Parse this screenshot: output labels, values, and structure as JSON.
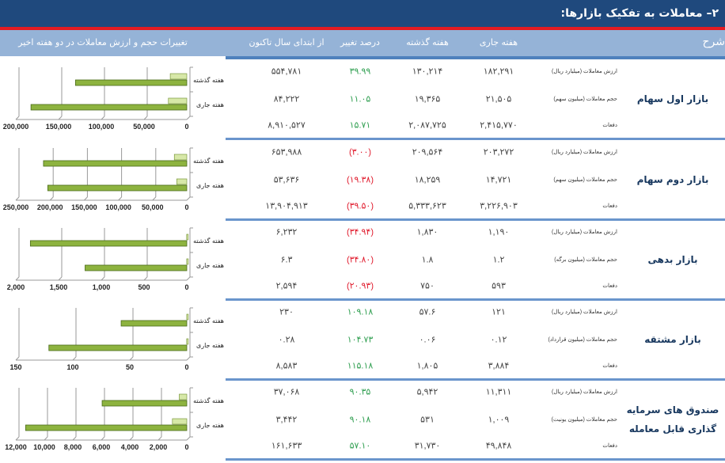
{
  "title": "۲– معاملات به تفکیک بازارها:",
  "header": {
    "sharh": "شرح",
    "current_week": "هفته جاری",
    "last_week": "هفته گذشته",
    "pct_change": "درصد تغییر",
    "ytd": "از ابتدای سال تاکنون",
    "chart_title": "تغییرات حجم و ارزش معاملات در دو هفته اخیر"
  },
  "colors": {
    "title_bg": "#1f497d",
    "accent_red": "#e21b22",
    "header_bg": "#95b3d7",
    "positive": "#2e9e4f",
    "negative": "#e0192b",
    "bar": "#8db33f"
  },
  "markets": [
    {
      "name": "بازار اول سهام",
      "rows": [
        {
          "label": "ارزش معاملات (میلیارد ریال)",
          "current": "۱۸۲,۲۹۱",
          "last": "۱۳۰,۲۱۴",
          "pct": "۳۹.۹۹",
          "pct_sign": "pos",
          "ytd": "۵۵۴,۷۸۱"
        },
        {
          "label": "حجم معاملات (میلیون سهم)",
          "current": "۲۱,۵۰۵",
          "last": "۱۹,۳۶۵",
          "pct": "۱۱.۰۵",
          "pct_sign": "pos",
          "ytd": "۸۴,۲۲۲"
        },
        {
          "label": "دفعات",
          "current": "۲,۴۱۵,۷۷۰",
          "last": "۲,۰۸۷,۷۲۵",
          "pct": "۱۵.۷۱",
          "pct_sign": "pos",
          "ytd": "۸,۹۱۰,۵۲۷"
        }
      ]
    },
    {
      "name": "بازار دوم سهام",
      "rows": [
        {
          "label": "ارزش معاملات (میلیارد ریال)",
          "current": "۲۰۳,۲۷۲",
          "last": "۲۰۹,۵۶۴",
          "pct": "(۳.۰۰)",
          "pct_sign": "neg",
          "ytd": "۶۵۳,۹۸۸"
        },
        {
          "label": "حجم معاملات (میلیون سهم)",
          "current": "۱۴,۷۲۱",
          "last": "۱۸,۲۵۹",
          "pct": "(۱۹.۳۸)",
          "pct_sign": "neg",
          "ytd": "۵۳,۶۳۶"
        },
        {
          "label": "دفعات",
          "current": "۳,۲۲۶,۹۰۳",
          "last": "۵,۳۳۳,۶۲۳",
          "pct": "(۳۹.۵۰)",
          "pct_sign": "neg",
          "ytd": "۱۳,۹۰۴,۹۱۳"
        }
      ]
    },
    {
      "name": "بازار بدهی",
      "rows": [
        {
          "label": "ارزش معاملات (میلیارد ریال)",
          "current": "۱,۱۹۰",
          "last": "۱,۸۳۰",
          "pct": "(۳۴.۹۴)",
          "pct_sign": "neg",
          "ytd": "۶,۲۳۲"
        },
        {
          "label": "حجم معاملات (میلیون برگه)",
          "current": "۱.۲",
          "last": "۱.۸",
          "pct": "(۳۴.۸۰)",
          "pct_sign": "neg",
          "ytd": "۶.۳"
        },
        {
          "label": "دفعات",
          "current": "۵۹۳",
          "last": "۷۵۰",
          "pct": "(۲۰.۹۳)",
          "pct_sign": "neg",
          "ytd": "۲,۵۹۴"
        }
      ]
    },
    {
      "name": "بازار مشتقه",
      "rows": [
        {
          "label": "ارزش معاملات (میلیارد ریال)",
          "current": "۱۲۱",
          "last": "۵۷.۶",
          "pct": "۱۰۹.۱۸",
          "pct_sign": "pos",
          "ytd": "۲۳۰"
        },
        {
          "label": "حجم معاملات (میلیون قرارداد)",
          "current": "۰.۱۲",
          "last": "۰.۰۶",
          "pct": "۱۰۴.۷۳",
          "pct_sign": "pos",
          "ytd": "۰.۲۸"
        },
        {
          "label": "دفعات",
          "current": "۳,۸۸۴",
          "last": "۱,۸۰۵",
          "pct": "۱۱۵.۱۸",
          "pct_sign": "pos",
          "ytd": "۸,۵۸۳"
        }
      ]
    },
    {
      "name": "صندوق های سرمایه گذاری قابل معامله",
      "name_line1": "صندوق های سرمایه",
      "name_line2": "گذاری قابل معامله",
      "rows": [
        {
          "label": "ارزش معاملات (میلیارد ریال)",
          "current": "۱۱,۳۱۱",
          "last": "۵,۹۴۲",
          "pct": "۹۰.۳۵",
          "pct_sign": "pos",
          "ytd": "۳۷,۰۶۸"
        },
        {
          "label": "حجم معاملات (میلیون یونیت)",
          "current": "۱,۰۰۹",
          "last": "۵۳۱",
          "pct": "۹۰.۱۸",
          "pct_sign": "pos",
          "ytd": "۳,۴۴۲"
        },
        {
          "label": "دفعات",
          "current": "۴۹,۸۴۸",
          "last": "۳۱,۷۳۰",
          "pct": "۵۷.۱۰",
          "pct_sign": "pos",
          "ytd": "۱۶۱,۶۳۳"
        }
      ]
    }
  ],
  "chart_data": [
    {
      "type": "bar",
      "orientation": "horizontal",
      "categories": [
        "هفته گذشته",
        "هفته جاری"
      ],
      "series": [
        {
          "values": [
            19365,
            21505
          ]
        },
        {
          "values": [
            130214,
            182291
          ]
        }
      ],
      "xlim": [
        0,
        200000
      ],
      "ticks": [
        "0",
        "50,000",
        "100,000",
        "150,000",
        "200,000"
      ],
      "tick_values": [
        0,
        50000,
        100000,
        150000,
        200000
      ]
    },
    {
      "type": "bar",
      "orientation": "horizontal",
      "categories": [
        "هفته گذشته",
        "هفته جاری"
      ],
      "series": [
        {
          "values": [
            18259,
            14721
          ]
        },
        {
          "values": [
            209564,
            203272
          ]
        }
      ],
      "xlim": [
        0,
        250000
      ],
      "ticks": [
        "0",
        "50,000",
        "100,000",
        "150,000",
        "200,000",
        "250,000"
      ],
      "tick_values": [
        0,
        50000,
        100000,
        150000,
        200000,
        250000
      ]
    },
    {
      "type": "bar",
      "orientation": "horizontal",
      "categories": [
        "هفته گذشته",
        "هفته جاری"
      ],
      "series": [
        {
          "values": [
            1.8,
            1.2
          ]
        },
        {
          "values": [
            1830,
            1190
          ]
        }
      ],
      "xlim": [
        0,
        2000
      ],
      "ticks": [
        "0",
        "500",
        "1,000",
        "1,500",
        "2,000"
      ],
      "tick_values": [
        0,
        500,
        1000,
        1500,
        2000
      ]
    },
    {
      "type": "bar",
      "orientation": "horizontal",
      "categories": [
        "هفته گذشته",
        "هفته جاری"
      ],
      "series": [
        {
          "values": [
            0.06,
            0.12
          ]
        },
        {
          "values": [
            57.6,
            121
          ]
        }
      ],
      "xlim": [
        0,
        150
      ],
      "ticks": [
        "0",
        "50",
        "100",
        "150"
      ],
      "tick_values": [
        0,
        50,
        100,
        150
      ]
    },
    {
      "type": "bar",
      "orientation": "horizontal",
      "categories": [
        "هفته گذشته",
        "هفته جاری"
      ],
      "series": [
        {
          "values": [
            531,
            1009
          ]
        },
        {
          "values": [
            5942,
            11311
          ]
        }
      ],
      "xlim": [
        0,
        12000
      ],
      "ticks": [
        "0",
        "2,000",
        "4,000",
        "6,000",
        "8,000",
        "10,000",
        "12,000"
      ],
      "tick_values": [
        0,
        2000,
        4000,
        6000,
        8000,
        10000,
        12000
      ]
    }
  ]
}
